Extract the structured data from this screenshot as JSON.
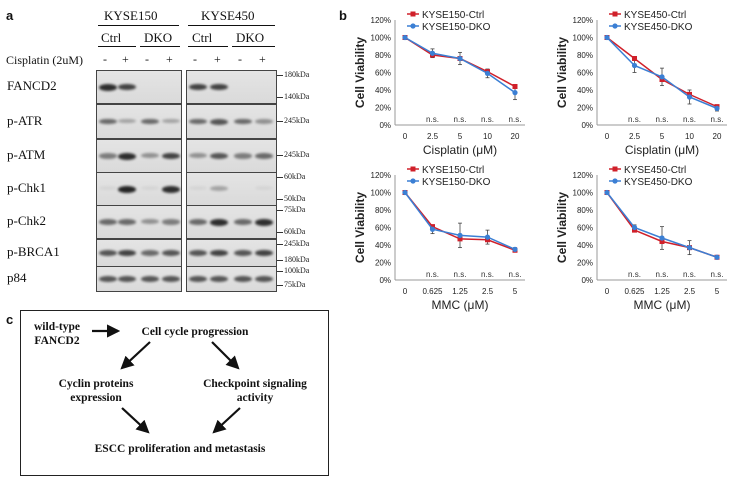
{
  "panel_a": {
    "letter": "a",
    "cell_lines": [
      "KYSE150",
      "KYSE450"
    ],
    "groups": [
      "Ctrl",
      "DKO",
      "Ctrl",
      "DKO"
    ],
    "treatment_label": "Cisplatin (2uM)",
    "lane_signs": [
      "-",
      "+",
      "-",
      "+",
      "-",
      "+",
      "-",
      "+"
    ],
    "rows": [
      {
        "label": "FANCD2",
        "markers": [
          "180kDa",
          "140kDa"
        ]
      },
      {
        "label": "p-ATR",
        "markers": [
          "245kDa"
        ]
      },
      {
        "label": "p-ATM",
        "markers": [
          "245kDa"
        ]
      },
      {
        "label": "p-Chk1",
        "markers": [
          "60kDa",
          "50kDa"
        ]
      },
      {
        "label": "p-Chk2",
        "markers": [
          "75kDa",
          "60kDa"
        ]
      },
      {
        "label": "p-BRCA1",
        "markers": [
          "245kDa",
          "180kDa"
        ]
      },
      {
        "label": "p84",
        "markers": [
          "100kDa",
          "75kDa"
        ]
      }
    ]
  },
  "panel_b": {
    "letter": "b",
    "chart_data": [
      {
        "type": "line",
        "ylabel": "Cell Viability",
        "xlabel": "Cisplatin (μM)",
        "categories": [
          "0",
          "2.5",
          "5",
          "10",
          "20"
        ],
        "yticks": [
          "0%",
          "20%",
          "40%",
          "60%",
          "80%",
          "100%",
          "120%"
        ],
        "ylim": [
          0,
          120
        ],
        "annotations": [
          "n.s.",
          "n.s.",
          "n.s.",
          "n.s."
        ],
        "series": [
          {
            "name": "KYSE150-Ctrl",
            "color": "#d0202a",
            "values": [
              100,
              80,
              76,
              61,
              44
            ]
          },
          {
            "name": "KYSE150-DKO",
            "color": "#3b7fd4",
            "values": [
              100,
              82,
              76,
              59,
              37
            ]
          }
        ],
        "errors": [
          0,
          5,
          7,
          5,
          8
        ]
      },
      {
        "type": "line",
        "ylabel": "Cell Viability",
        "xlabel": "Cisplatin (μM)",
        "categories": [
          "0",
          "2.5",
          "5",
          "10",
          "20"
        ],
        "yticks": [
          "0%",
          "20%",
          "40%",
          "60%",
          "80%",
          "100%",
          "120%"
        ],
        "ylim": [
          0,
          120
        ],
        "annotations": [
          "n.s.",
          "n.s.",
          "n.s.",
          "n.s."
        ],
        "series": [
          {
            "name": "KYSE450-Ctrl",
            "color": "#d0202a",
            "values": [
              100,
              76,
              52,
              35,
              21
            ]
          },
          {
            "name": "KYSE450-DKO",
            "color": "#3b7fd4",
            "values": [
              100,
              68,
              55,
              32,
              19
            ]
          }
        ],
        "errors": [
          0,
          8,
          10,
          8,
          3
        ]
      },
      {
        "type": "line",
        "ylabel": "Cell Viability",
        "xlabel": "MMC (μM)",
        "categories": [
          "0",
          "0.625",
          "1.25",
          "2.5",
          "5"
        ],
        "yticks": [
          "0%",
          "20%",
          "40%",
          "60%",
          "80%",
          "100%",
          "120%"
        ],
        "ylim": [
          0,
          120
        ],
        "annotations": [
          "n.s.",
          "n.s.",
          "n.s.",
          "n.s."
        ],
        "series": [
          {
            "name": "KYSE150-Ctrl",
            "color": "#d0202a",
            "values": [
              100,
              61,
              47,
              46,
              34
            ]
          },
          {
            "name": "KYSE150-DKO",
            "color": "#3b7fd4",
            "values": [
              100,
              58,
              51,
              49,
              35
            ]
          }
        ],
        "errors": [
          0,
          5,
          14,
          8,
          2
        ]
      },
      {
        "type": "line",
        "ylabel": "Cell Viability",
        "xlabel": "MMC (μM)",
        "categories": [
          "0",
          "0.625",
          "1.25",
          "2.5",
          "5"
        ],
        "yticks": [
          "0%",
          "20%",
          "40%",
          "60%",
          "80%",
          "100%",
          "120%"
        ],
        "ylim": [
          0,
          120
        ],
        "annotations": [
          "n.s.",
          "n.s.",
          "n.s.",
          "n.s."
        ],
        "series": [
          {
            "name": "KYSE450-Ctrl",
            "color": "#d0202a",
            "values": [
              100,
              57,
              44,
              37,
              26
            ]
          },
          {
            "name": "KYSE450-DKO",
            "color": "#3b7fd4",
            "values": [
              100,
              60,
              48,
              37,
              26
            ]
          }
        ],
        "errors": [
          0,
          3,
          13,
          8,
          2
        ]
      }
    ]
  },
  "panel_c": {
    "letter": "c",
    "start_line1": "wild-type",
    "start_line2": "FANCD2",
    "cell_cycle": "Cell cycle progression",
    "cyclin_line1": "Cyclin proteins",
    "cyclin_line2": "expression",
    "checkpoint_line1": "Checkpoint signaling",
    "checkpoint_line2": "activity",
    "outcome": "ESCC proliferation and metastasis"
  }
}
